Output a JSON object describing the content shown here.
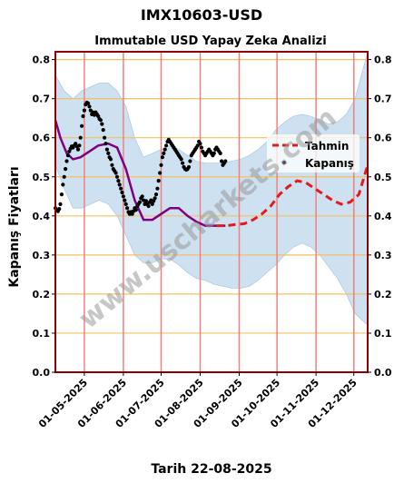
{
  "page": {
    "title": "IMX10603-USD",
    "watermark": "www.uscharkets.com"
  },
  "chart_data": {
    "type": "line",
    "title": "Immutable USD Yapay Zeka Analizi",
    "xlabel": "Tarih 22-08-2025",
    "ylabel": "Kapanış Fiyatları",
    "ylim": [
      0,
      0.82
    ],
    "y_ticks": [
      "0.0",
      "0.1",
      "0.2",
      "0.3",
      "0.4",
      "0.5",
      "0.6",
      "0.7",
      "0.8"
    ],
    "x_range": [
      "2025-04-08",
      "2025-12-12"
    ],
    "x_ticks": [
      {
        "date": "2025-05-01",
        "label": "01-05-2025"
      },
      {
        "date": "2025-06-01",
        "label": "01-06-2025"
      },
      {
        "date": "2025-07-01",
        "label": "01-07-2025"
      },
      {
        "date": "2025-08-01",
        "label": "01-08-2025"
      },
      {
        "date": "2025-09-01",
        "label": "01-09-2025"
      },
      {
        "date": "2025-10-01",
        "label": "01-10-2025"
      },
      {
        "date": "2025-11-01",
        "label": "01-11-2025"
      },
      {
        "date": "2025-12-01",
        "label": "01-12-2025"
      }
    ],
    "legend": {
      "position": "upper-right",
      "entries": [
        {
          "label": "Tahmin",
          "color": "#e31a1c",
          "style": "dashed-line"
        },
        {
          "label": "Kapanış",
          "color": "#000000",
          "style": "dots"
        }
      ]
    },
    "colors": {
      "forecast": "#e31a1c",
      "close": "#000000",
      "trend": "#800080",
      "band": "#b8d4ea",
      "vline": "#f08080",
      "hgrid": "#f5c060",
      "frame": "#8b0000"
    },
    "series": [
      {
        "name": "Kapanış",
        "style": "dots",
        "points": [
          [
            "2025-04-08",
            0.42
          ],
          [
            "2025-04-09",
            0.415
          ],
          [
            "2025-04-10",
            0.412
          ],
          [
            "2025-04-11",
            0.418
          ],
          [
            "2025-04-12",
            0.43
          ],
          [
            "2025-04-13",
            0.455
          ],
          [
            "2025-04-14",
            0.48
          ],
          [
            "2025-04-15",
            0.5
          ],
          [
            "2025-04-16",
            0.52
          ],
          [
            "2025-04-17",
            0.54
          ],
          [
            "2025-04-18",
            0.555
          ],
          [
            "2025-04-19",
            0.565
          ],
          [
            "2025-04-20",
            0.572
          ],
          [
            "2025-04-21",
            0.578
          ],
          [
            "2025-04-22",
            0.575
          ],
          [
            "2025-04-23",
            0.58
          ],
          [
            "2025-04-24",
            0.585
          ],
          [
            "2025-04-25",
            0.578
          ],
          [
            "2025-04-26",
            0.57
          ],
          [
            "2025-04-27",
            0.58
          ],
          [
            "2025-04-28",
            0.6
          ],
          [
            "2025-04-29",
            0.63
          ],
          [
            "2025-04-30",
            0.655
          ],
          [
            "2025-05-01",
            0.67
          ],
          [
            "2025-05-02",
            0.685
          ],
          [
            "2025-05-03",
            0.69
          ],
          [
            "2025-05-04",
            0.688
          ],
          [
            "2025-05-05",
            0.68
          ],
          [
            "2025-05-06",
            0.67
          ],
          [
            "2025-05-07",
            0.66
          ],
          [
            "2025-05-08",
            0.665
          ],
          [
            "2025-05-09",
            0.658
          ],
          [
            "2025-05-10",
            0.665
          ],
          [
            "2025-05-11",
            0.66
          ],
          [
            "2025-05-12",
            0.655
          ],
          [
            "2025-05-13",
            0.648
          ],
          [
            "2025-05-14",
            0.645
          ],
          [
            "2025-05-15",
            0.635
          ],
          [
            "2025-05-16",
            0.62
          ],
          [
            "2025-05-17",
            0.6
          ],
          [
            "2025-05-18",
            0.585
          ],
          [
            "2025-05-19",
            0.57
          ],
          [
            "2025-05-20",
            0.56
          ],
          [
            "2025-05-21",
            0.55
          ],
          [
            "2025-05-22",
            0.545
          ],
          [
            "2025-05-23",
            0.53
          ],
          [
            "2025-05-24",
            0.52
          ],
          [
            "2025-05-25",
            0.515
          ],
          [
            "2025-05-26",
            0.51
          ],
          [
            "2025-05-27",
            0.5
          ],
          [
            "2025-05-28",
            0.49
          ],
          [
            "2025-05-29",
            0.48
          ],
          [
            "2025-05-30",
            0.47
          ],
          [
            "2025-05-31",
            0.46
          ],
          [
            "2025-06-01",
            0.45
          ],
          [
            "2025-06-02",
            0.44
          ],
          [
            "2025-06-03",
            0.43
          ],
          [
            "2025-06-04",
            0.42
          ],
          [
            "2025-06-05",
            0.41
          ],
          [
            "2025-06-06",
            0.405
          ],
          [
            "2025-06-07",
            0.41
          ],
          [
            "2025-06-08",
            0.405
          ],
          [
            "2025-06-09",
            0.412
          ],
          [
            "2025-06-10",
            0.42
          ],
          [
            "2025-06-11",
            0.415
          ],
          [
            "2025-06-12",
            0.425
          ],
          [
            "2025-06-13",
            0.43
          ],
          [
            "2025-06-14",
            0.435
          ],
          [
            "2025-06-15",
            0.445
          ],
          [
            "2025-06-16",
            0.45
          ],
          [
            "2025-06-17",
            0.44
          ],
          [
            "2025-06-18",
            0.43
          ],
          [
            "2025-06-19",
            0.438
          ],
          [
            "2025-06-20",
            0.43
          ],
          [
            "2025-06-21",
            0.425
          ],
          [
            "2025-06-22",
            0.435
          ],
          [
            "2025-06-23",
            0.44
          ],
          [
            "2025-06-24",
            0.43
          ],
          [
            "2025-06-25",
            0.438
          ],
          [
            "2025-06-26",
            0.445
          ],
          [
            "2025-06-27",
            0.455
          ],
          [
            "2025-06-28",
            0.47
          ],
          [
            "2025-06-29",
            0.49
          ],
          [
            "2025-06-30",
            0.51
          ],
          [
            "2025-07-01",
            0.53
          ],
          [
            "2025-07-02",
            0.55
          ],
          [
            "2025-07-03",
            0.56
          ],
          [
            "2025-07-04",
            0.57
          ],
          [
            "2025-07-05",
            0.58
          ],
          [
            "2025-07-06",
            0.59
          ],
          [
            "2025-07-07",
            0.595
          ],
          [
            "2025-07-08",
            0.59
          ],
          [
            "2025-07-09",
            0.585
          ],
          [
            "2025-07-10",
            0.58
          ],
          [
            "2025-07-11",
            0.575
          ],
          [
            "2025-07-12",
            0.57
          ],
          [
            "2025-07-13",
            0.565
          ],
          [
            "2025-07-14",
            0.56
          ],
          [
            "2025-07-15",
            0.555
          ],
          [
            "2025-07-16",
            0.55
          ],
          [
            "2025-07-17",
            0.545
          ],
          [
            "2025-07-18",
            0.535
          ],
          [
            "2025-07-19",
            0.525
          ],
          [
            "2025-07-20",
            0.52
          ],
          [
            "2025-07-21",
            0.518
          ],
          [
            "2025-07-22",
            0.52
          ],
          [
            "2025-07-23",
            0.525
          ],
          [
            "2025-07-24",
            0.54
          ],
          [
            "2025-07-25",
            0.555
          ],
          [
            "2025-07-26",
            0.56
          ],
          [
            "2025-07-27",
            0.565
          ],
          [
            "2025-07-28",
            0.57
          ],
          [
            "2025-07-29",
            0.575
          ],
          [
            "2025-07-30",
            0.58
          ],
          [
            "2025-07-31",
            0.59
          ],
          [
            "2025-08-01",
            0.585
          ],
          [
            "2025-08-02",
            0.575
          ],
          [
            "2025-08-03",
            0.565
          ],
          [
            "2025-08-04",
            0.56
          ],
          [
            "2025-08-05",
            0.555
          ],
          [
            "2025-08-06",
            0.56
          ],
          [
            "2025-08-07",
            0.565
          ],
          [
            "2025-08-08",
            0.57
          ],
          [
            "2025-08-09",
            0.565
          ],
          [
            "2025-08-10",
            0.56
          ],
          [
            "2025-08-11",
            0.555
          ],
          [
            "2025-08-12",
            0.56
          ],
          [
            "2025-08-13",
            0.57
          ],
          [
            "2025-08-14",
            0.575
          ],
          [
            "2025-08-15",
            0.57
          ],
          [
            "2025-08-16",
            0.565
          ],
          [
            "2025-08-17",
            0.56
          ],
          [
            "2025-08-18",
            0.54
          ],
          [
            "2025-08-19",
            0.53
          ],
          [
            "2025-08-20",
            0.535
          ],
          [
            "2025-08-21",
            0.54
          ]
        ]
      },
      {
        "name": "trend",
        "style": "line",
        "points": [
          [
            "2025-04-08",
            0.645
          ],
          [
            "2025-04-12",
            0.6
          ],
          [
            "2025-04-17",
            0.56
          ],
          [
            "2025-04-22",
            0.545
          ],
          [
            "2025-04-28",
            0.55
          ],
          [
            "2025-05-05",
            0.565
          ],
          [
            "2025-05-12",
            0.58
          ],
          [
            "2025-05-20",
            0.585
          ],
          [
            "2025-05-27",
            0.575
          ],
          [
            "2025-06-03",
            0.52
          ],
          [
            "2025-06-10",
            0.44
          ],
          [
            "2025-06-17",
            0.39
          ],
          [
            "2025-06-24",
            0.39
          ],
          [
            "2025-07-01",
            0.405
          ],
          [
            "2025-07-08",
            0.42
          ],
          [
            "2025-07-15",
            0.42
          ],
          [
            "2025-07-22",
            0.4
          ],
          [
            "2025-07-29",
            0.385
          ],
          [
            "2025-08-05",
            0.375
          ],
          [
            "2025-08-12",
            0.375
          ],
          [
            "2025-08-21",
            0.375
          ]
        ]
      },
      {
        "name": "Tahmin",
        "style": "dashed-line",
        "points": [
          [
            "2025-08-14",
            0.375
          ],
          [
            "2025-08-22",
            0.375
          ],
          [
            "2025-08-29",
            0.378
          ],
          [
            "2025-09-05",
            0.38
          ],
          [
            "2025-09-12",
            0.39
          ],
          [
            "2025-09-19",
            0.405
          ],
          [
            "2025-09-26",
            0.425
          ],
          [
            "2025-10-03",
            0.455
          ],
          [
            "2025-10-10",
            0.475
          ],
          [
            "2025-10-17",
            0.49
          ],
          [
            "2025-10-24",
            0.485
          ],
          [
            "2025-10-31",
            0.47
          ],
          [
            "2025-11-07",
            0.455
          ],
          [
            "2025-11-14",
            0.44
          ],
          [
            "2025-11-21",
            0.43
          ],
          [
            "2025-11-28",
            0.435
          ],
          [
            "2025-12-05",
            0.455
          ],
          [
            "2025-12-12",
            0.53
          ]
        ]
      },
      {
        "name": "band",
        "style": "area",
        "upper": [
          [
            "2025-04-08",
            0.76
          ],
          [
            "2025-04-15",
            0.72
          ],
          [
            "2025-04-22",
            0.7
          ],
          [
            "2025-04-29",
            0.72
          ],
          [
            "2025-05-06",
            0.73
          ],
          [
            "2025-05-13",
            0.74
          ],
          [
            "2025-05-20",
            0.74
          ],
          [
            "2025-05-27",
            0.72
          ],
          [
            "2025-06-03",
            0.68
          ],
          [
            "2025-06-10",
            0.6
          ],
          [
            "2025-06-17",
            0.55
          ],
          [
            "2025-06-24",
            0.56
          ],
          [
            "2025-07-01",
            0.57
          ],
          [
            "2025-07-08",
            0.58
          ],
          [
            "2025-07-15",
            0.57
          ],
          [
            "2025-07-22",
            0.555
          ],
          [
            "2025-07-29",
            0.54
          ],
          [
            "2025-08-05",
            0.535
          ],
          [
            "2025-08-12",
            0.535
          ],
          [
            "2025-08-19",
            0.535
          ],
          [
            "2025-08-26",
            0.54
          ],
          [
            "2025-09-02",
            0.545
          ],
          [
            "2025-09-09",
            0.555
          ],
          [
            "2025-09-16",
            0.57
          ],
          [
            "2025-09-23",
            0.59
          ],
          [
            "2025-09-30",
            0.62
          ],
          [
            "2025-10-07",
            0.64
          ],
          [
            "2025-10-14",
            0.655
          ],
          [
            "2025-10-21",
            0.66
          ],
          [
            "2025-10-28",
            0.655
          ],
          [
            "2025-11-04",
            0.645
          ],
          [
            "2025-11-11",
            0.635
          ],
          [
            "2025-11-18",
            0.64
          ],
          [
            "2025-11-25",
            0.66
          ],
          [
            "2025-12-02",
            0.7
          ],
          [
            "2025-12-12",
            0.82
          ]
        ],
        "lower": [
          [
            "2025-04-08",
            0.53
          ],
          [
            "2025-04-15",
            0.47
          ],
          [
            "2025-04-22",
            0.42
          ],
          [
            "2025-04-29",
            0.42
          ],
          [
            "2025-05-06",
            0.43
          ],
          [
            "2025-05-13",
            0.44
          ],
          [
            "2025-05-20",
            0.43
          ],
          [
            "2025-05-27",
            0.4
          ],
          [
            "2025-06-03",
            0.35
          ],
          [
            "2025-06-10",
            0.3
          ],
          [
            "2025-06-17",
            0.28
          ],
          [
            "2025-06-24",
            0.28
          ],
          [
            "2025-07-01",
            0.29
          ],
          [
            "2025-07-08",
            0.29
          ],
          [
            "2025-07-15",
            0.275
          ],
          [
            "2025-07-22",
            0.255
          ],
          [
            "2025-07-29",
            0.24
          ],
          [
            "2025-08-05",
            0.235
          ],
          [
            "2025-08-12",
            0.225
          ],
          [
            "2025-08-19",
            0.22
          ],
          [
            "2025-08-26",
            0.215
          ],
          [
            "2025-09-02",
            0.215
          ],
          [
            "2025-09-09",
            0.22
          ],
          [
            "2025-09-16",
            0.235
          ],
          [
            "2025-09-23",
            0.255
          ],
          [
            "2025-09-30",
            0.275
          ],
          [
            "2025-10-07",
            0.3
          ],
          [
            "2025-10-14",
            0.32
          ],
          [
            "2025-10-21",
            0.33
          ],
          [
            "2025-10-28",
            0.32
          ],
          [
            "2025-11-04",
            0.3
          ],
          [
            "2025-11-11",
            0.27
          ],
          [
            "2025-11-18",
            0.24
          ],
          [
            "2025-11-25",
            0.2
          ],
          [
            "2025-12-02",
            0.15
          ],
          [
            "2025-12-12",
            0.12
          ]
        ]
      }
    ]
  }
}
